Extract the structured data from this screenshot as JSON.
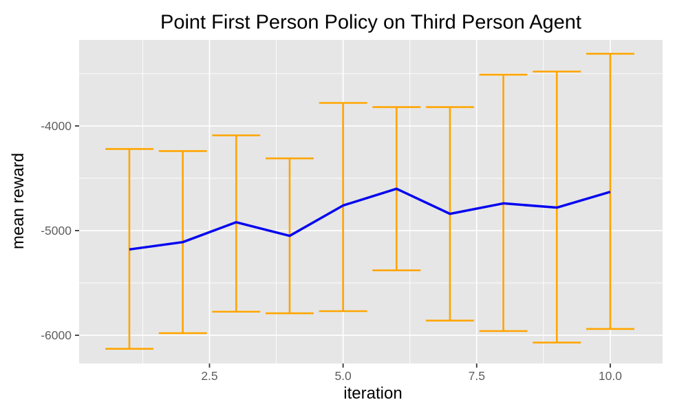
{
  "chart_data": {
    "type": "line",
    "title": "Point First Person Policy on Third Person Agent",
    "xlabel": "iteration",
    "ylabel": "mean reward",
    "x": [
      1,
      2,
      3,
      4,
      5,
      6,
      7,
      8,
      9,
      10
    ],
    "series": [
      {
        "name": "mean reward",
        "type": "line",
        "color": "#0505f0",
        "values": [
          -5180,
          -5110,
          -4920,
          -5050,
          -4760,
          -4600,
          -4840,
          -4740,
          -4780,
          -4630
        ]
      }
    ],
    "error_bars": {
      "color": "#FFA500",
      "cap_halfwidth_x": 0.45,
      "upper": [
        -4220,
        -4240,
        -4090,
        -4310,
        -3780,
        -3820,
        -3820,
        -3510,
        -3480,
        -3310
      ],
      "lower": [
        -6130,
        -5980,
        -5775,
        -5790,
        -5770,
        -5380,
        -5860,
        -5960,
        -6070,
        -5940
      ]
    },
    "axes": {
      "x": {
        "range": [
          0.06,
          10.98
        ],
        "ticks": [
          2.5,
          5.0,
          7.5,
          10.0
        ],
        "tick_labels": [
          "2.5",
          "5.0",
          "7.5",
          "10.0"
        ],
        "minor_ticks": [
          1.25,
          3.75,
          6.25,
          8.75
        ]
      },
      "y": {
        "range": [
          -6270,
          -3178
        ],
        "ticks": [
          -4000,
          -5000,
          -6000
        ],
        "tick_labels": [
          "-4000",
          "-5000",
          "-6000"
        ],
        "minor_ticks": [
          -3500,
          -4500,
          -5500
        ]
      }
    },
    "grid": "on",
    "legend": "none",
    "style": {
      "panel_bg": "#E6E6E6",
      "grid_color": "#FFFFFF",
      "tick_mark_color": "#333333",
      "tick_label_color": "#5f5f5f",
      "title_color": "#000000",
      "axis_title_color": "#000000"
    }
  }
}
